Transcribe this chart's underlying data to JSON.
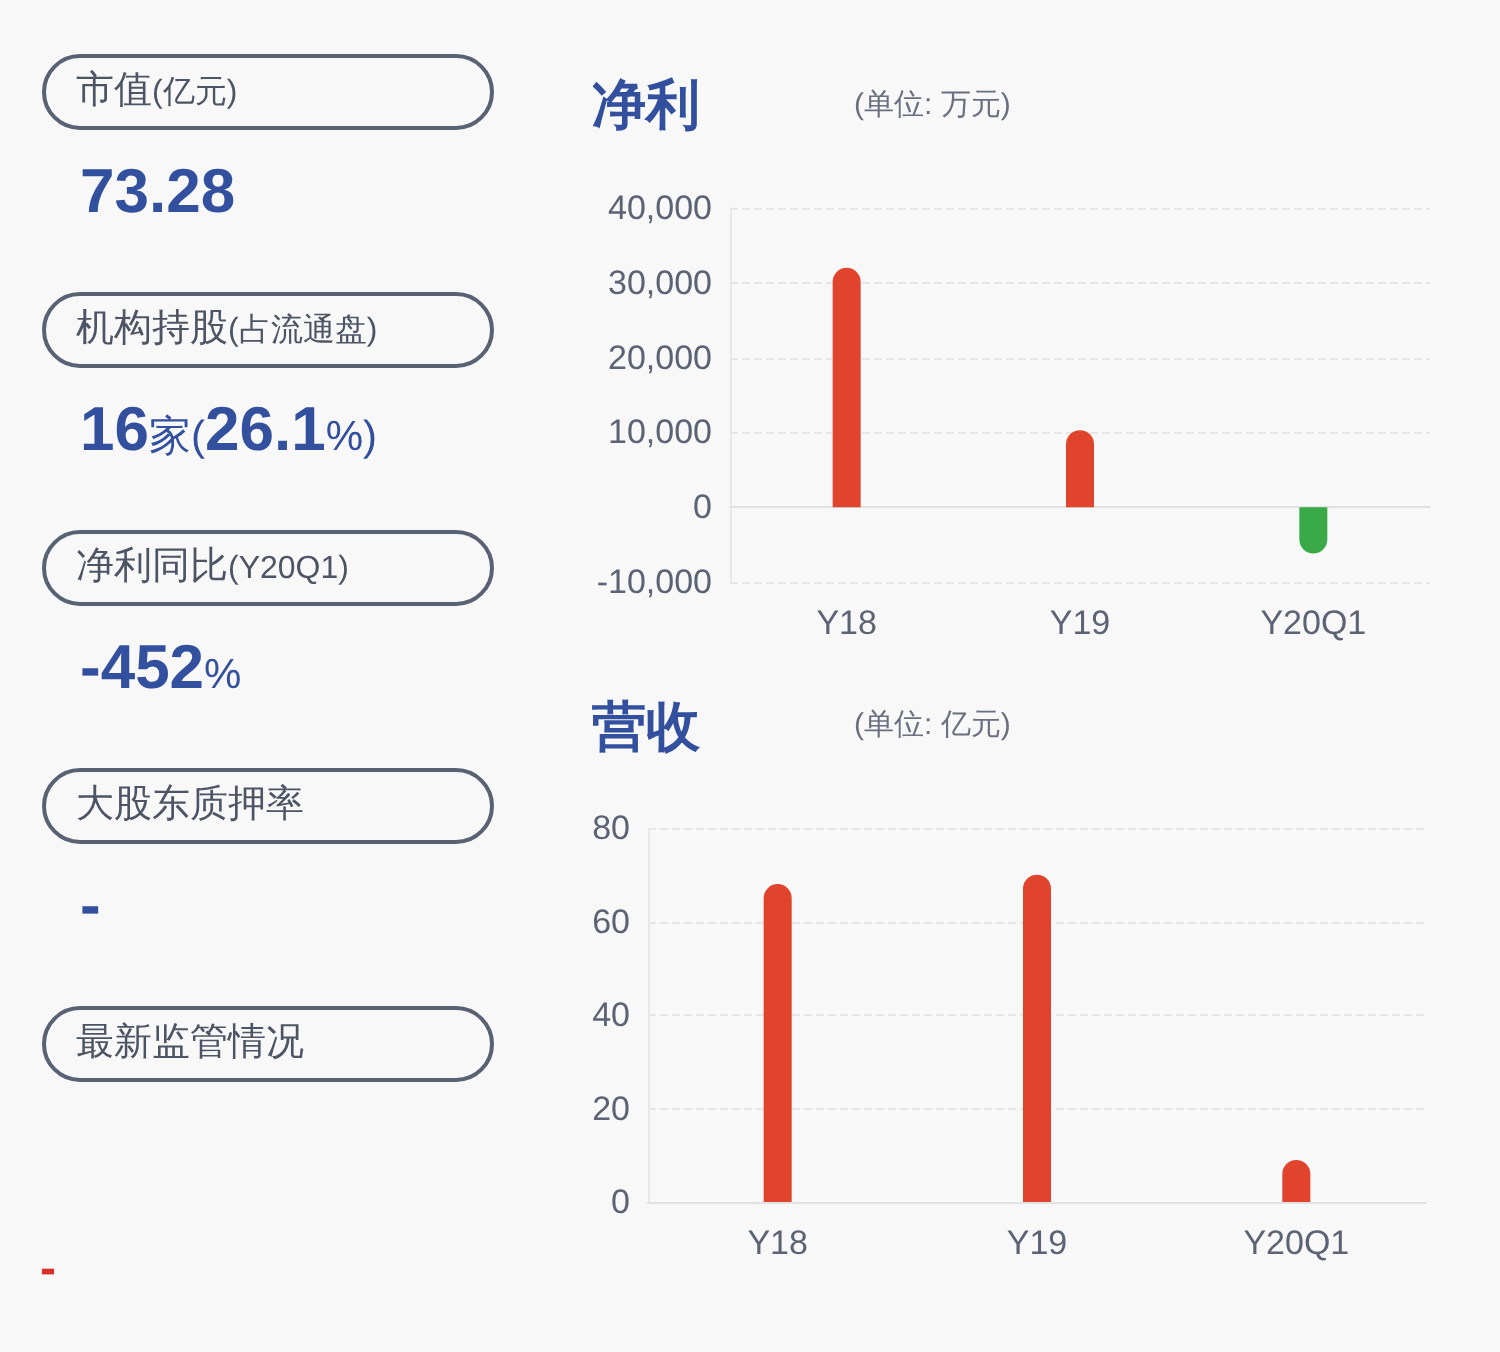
{
  "chart_data": [
    {
      "type": "other",
      "categories": [
        "市值(亿元)",
        "机构持股(占流通盘)",
        "净利同比(Y20Q1)",
        "大股东质押率",
        "最新监管情况"
      ],
      "value_labels": [
        "73.28",
        "16家(26.1%)",
        "-452%",
        "-",
        null
      ],
      "annotations": [
        "-"
      ]
    },
    {
      "type": "bar",
      "title": "净利",
      "subtitle": "(单位: 万元)",
      "categories": [
        "Y18",
        "Y19",
        "Y20Q1"
      ],
      "values": [
        32000,
        10300,
        -6200
      ],
      "colors": [
        "#e0442c",
        "#e0442c",
        "#3aaa48"
      ],
      "ylim": [
        -10000,
        40000
      ],
      "yticks": [
        {
          "value": -10000,
          "label": "-10,000"
        },
        0,
        {
          "value": 10000,
          "label": "10,000"
        },
        {
          "value": 20000,
          "label": "20,000"
        },
        {
          "value": 30000,
          "label": "30,000"
        },
        {
          "value": 40000,
          "label": "40,000"
        }
      ],
      "grid": "y"
    },
    {
      "type": "bar",
      "title": "营收",
      "subtitle": "(单位: 亿元)",
      "categories": [
        "Y18",
        "Y19",
        "Y20Q1"
      ],
      "values": [
        68,
        70,
        9
      ],
      "color": "#e0442c",
      "ylim": [
        0,
        80
      ],
      "yticks": [
        0,
        20,
        40,
        60,
        80
      ],
      "grid": "y"
    }
  ]
}
